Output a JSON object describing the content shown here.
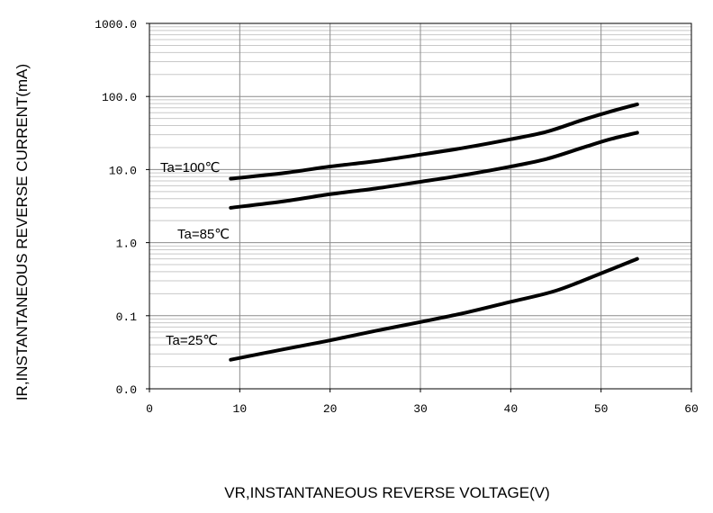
{
  "chart_data": {
    "type": "line",
    "ylabel": "IR,INSTANTANEOUS REVERSE CURRENT(mA)",
    "xlabel": "VR,INSTANTANEOUS REVERSE VOLTAGE(V)",
    "xlim": [
      0,
      60
    ],
    "ylim": [
      0.01,
      1000
    ],
    "y_scale": "log",
    "grid": true,
    "x_ticks": [
      0,
      10,
      20,
      30,
      40,
      50,
      60
    ],
    "x_tick_labels": [
      "0",
      "10",
      "20",
      "30",
      "40",
      "50",
      "60"
    ],
    "y_ticks": [
      0.01,
      0.1,
      1,
      10,
      100,
      1000
    ],
    "y_tick_labels": [
      "0.0",
      "0.1",
      "1.0",
      "10.0",
      "100.0",
      "1000.0"
    ],
    "line_color": "#000000",
    "series": [
      {
        "name": "Ta=100℃",
        "x": [
          9,
          15,
          20,
          25,
          30,
          35,
          40,
          44,
          48,
          51,
          54
        ],
        "y": [
          7.5,
          9.0,
          11.0,
          13.0,
          16.0,
          20.0,
          26.0,
          33.0,
          48.0,
          62.0,
          78.0
        ]
      },
      {
        "name": "Ta=85℃",
        "x": [
          9,
          15,
          20,
          25,
          30,
          35,
          40,
          44,
          48,
          51,
          54
        ],
        "y": [
          3.0,
          3.7,
          4.6,
          5.5,
          6.8,
          8.5,
          11.0,
          14.0,
          20.0,
          26.0,
          32.0
        ]
      },
      {
        "name": "Ta=25℃",
        "x": [
          9,
          15,
          20,
          25,
          30,
          35,
          40,
          45,
          50,
          54
        ],
        "y": [
          0.025,
          0.035,
          0.046,
          0.062,
          0.082,
          0.11,
          0.155,
          0.22,
          0.38,
          0.6
        ]
      }
    ]
  }
}
